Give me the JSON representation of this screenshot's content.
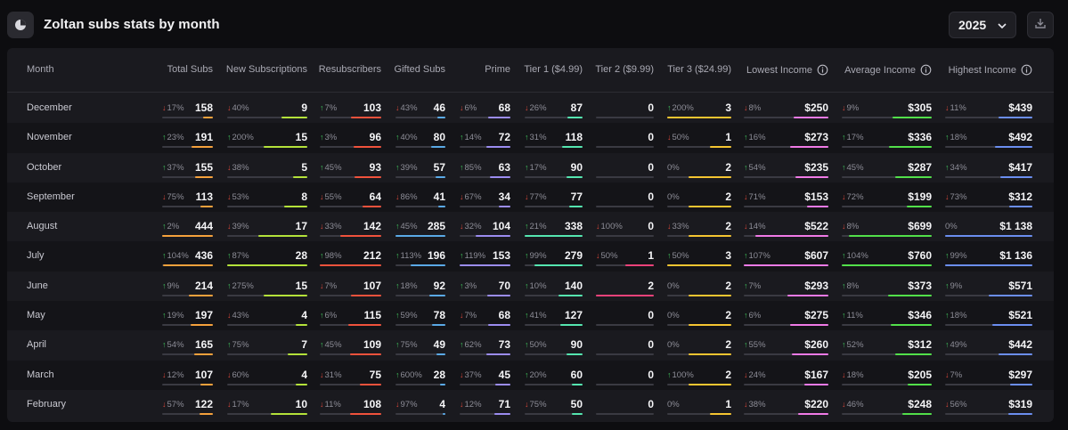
{
  "header": {
    "title": "Zoltan subs stats by month",
    "year": "2025",
    "logo_icon": "pie-chart-icon",
    "download_icon": "download-icon"
  },
  "columns": [
    {
      "key": "month",
      "label": "Month"
    },
    {
      "key": "total",
      "label": "Total Subs",
      "color": "#f5a13c"
    },
    {
      "key": "new",
      "label": "New Subscriptions",
      "color": "#b4e23a"
    },
    {
      "key": "resubs",
      "label": "Resubscribers",
      "color": "#f0523c"
    },
    {
      "key": "gifted",
      "label": "Gifted Subs",
      "color": "#5aa9e6"
    },
    {
      "key": "prime",
      "label": "Prime",
      "color": "#9b8cf0"
    },
    {
      "key": "tier1",
      "label": "Tier 1 ($4.99)",
      "color": "#55e6b0"
    },
    {
      "key": "tier2",
      "label": "Tier 2 ($9.99)",
      "color": "#f0427a"
    },
    {
      "key": "tier3",
      "label": "Tier 3 ($24.99)",
      "color": "#f5c531"
    },
    {
      "key": "lowest",
      "label": "Lowest Income",
      "color": "#f07ae6",
      "info": true
    },
    {
      "key": "average",
      "label": "Average Income",
      "color": "#52e04a",
      "info": true
    },
    {
      "key": "highest",
      "label": "Highest Income",
      "color": "#6b8ef0",
      "info": true
    }
  ],
  "rows": [
    {
      "month": "December",
      "cells": [
        {
          "dir": "down",
          "pct": "17%",
          "val": "158",
          "fill": 0.2
        },
        {
          "dir": "down",
          "pct": "40%",
          "val": "9",
          "fill": 0.32
        },
        {
          "dir": "up",
          "pct": "7%",
          "val": "103",
          "fill": 0.5
        },
        {
          "dir": "down",
          "pct": "43%",
          "val": "46",
          "fill": 0.16
        },
        {
          "dir": "down",
          "pct": "6%",
          "val": "68",
          "fill": 0.44
        },
        {
          "dir": "down",
          "pct": "26%",
          "val": "87",
          "fill": 0.26
        },
        {
          "dir": "",
          "pct": "",
          "val": "0",
          "fill": 0
        },
        {
          "dir": "up",
          "pct": "200%",
          "val": "3",
          "fill": 1
        },
        {
          "dir": "down",
          "pct": "8%",
          "val": "$250",
          "fill": 0.41
        },
        {
          "dir": "down",
          "pct": "9%",
          "val": "$305",
          "fill": 0.44
        },
        {
          "dir": "down",
          "pct": "11%",
          "val": "$439",
          "fill": 0.39
        }
      ]
    },
    {
      "month": "November",
      "cells": [
        {
          "dir": "up",
          "pct": "23%",
          "val": "191",
          "fill": 0.43
        },
        {
          "dir": "up",
          "pct": "200%",
          "val": "15",
          "fill": 0.54
        },
        {
          "dir": "up",
          "pct": "3%",
          "val": "96",
          "fill": 0.45
        },
        {
          "dir": "up",
          "pct": "40%",
          "val": "80",
          "fill": 0.28
        },
        {
          "dir": "up",
          "pct": "14%",
          "val": "72",
          "fill": 0.47
        },
        {
          "dir": "up",
          "pct": "31%",
          "val": "118",
          "fill": 0.35
        },
        {
          "dir": "",
          "pct": "",
          "val": "0",
          "fill": 0
        },
        {
          "dir": "down",
          "pct": "50%",
          "val": "1",
          "fill": 0.33
        },
        {
          "dir": "up",
          "pct": "16%",
          "val": "$273",
          "fill": 0.45
        },
        {
          "dir": "up",
          "pct": "17%",
          "val": "$336",
          "fill": 0.48
        },
        {
          "dir": "up",
          "pct": "18%",
          "val": "$492",
          "fill": 0.43
        }
      ]
    },
    {
      "month": "October",
      "cells": [
        {
          "dir": "up",
          "pct": "37%",
          "val": "155",
          "fill": 0.35
        },
        {
          "dir": "down",
          "pct": "38%",
          "val": "5",
          "fill": 0.18
        },
        {
          "dir": "up",
          "pct": "45%",
          "val": "93",
          "fill": 0.44
        },
        {
          "dir": "up",
          "pct": "39%",
          "val": "57",
          "fill": 0.2
        },
        {
          "dir": "up",
          "pct": "85%",
          "val": "63",
          "fill": 0.41
        },
        {
          "dir": "up",
          "pct": "17%",
          "val": "90",
          "fill": 0.27
        },
        {
          "dir": "",
          "pct": "",
          "val": "0",
          "fill": 0
        },
        {
          "dir": "",
          "pct": "0%",
          "val": "2",
          "fill": 0.67
        },
        {
          "dir": "up",
          "pct": "54%",
          "val": "$235",
          "fill": 0.39
        },
        {
          "dir": "up",
          "pct": "45%",
          "val": "$287",
          "fill": 0.41
        },
        {
          "dir": "up",
          "pct": "34%",
          "val": "$417",
          "fill": 0.37
        }
      ]
    },
    {
      "month": "September",
      "cells": [
        {
          "dir": "down",
          "pct": "75%",
          "val": "113",
          "fill": 0.25
        },
        {
          "dir": "down",
          "pct": "53%",
          "val": "8",
          "fill": 0.29
        },
        {
          "dir": "down",
          "pct": "55%",
          "val": "64",
          "fill": 0.3
        },
        {
          "dir": "down",
          "pct": "86%",
          "val": "41",
          "fill": 0.14
        },
        {
          "dir": "down",
          "pct": "67%",
          "val": "34",
          "fill": 0.22
        },
        {
          "dir": "down",
          "pct": "77%",
          "val": "77",
          "fill": 0.23
        },
        {
          "dir": "",
          "pct": "",
          "val": "0",
          "fill": 0
        },
        {
          "dir": "",
          "pct": "0%",
          "val": "2",
          "fill": 0.67
        },
        {
          "dir": "down",
          "pct": "71%",
          "val": "$153",
          "fill": 0.25
        },
        {
          "dir": "down",
          "pct": "72%",
          "val": "$199",
          "fill": 0.28
        },
        {
          "dir": "down",
          "pct": "73%",
          "val": "$312",
          "fill": 0.27
        }
      ]
    },
    {
      "month": "August",
      "cells": [
        {
          "dir": "up",
          "pct": "2%",
          "val": "444",
          "fill": 1
        },
        {
          "dir": "down",
          "pct": "39%",
          "val": "17",
          "fill": 0.61
        },
        {
          "dir": "down",
          "pct": "33%",
          "val": "142",
          "fill": 0.67
        },
        {
          "dir": "up",
          "pct": "45%",
          "val": "285",
          "fill": 1
        },
        {
          "dir": "down",
          "pct": "32%",
          "val": "104",
          "fill": 0.68
        },
        {
          "dir": "up",
          "pct": "21%",
          "val": "338",
          "fill": 1
        },
        {
          "dir": "down",
          "pct": "100%",
          "val": "0",
          "fill": 0
        },
        {
          "dir": "down",
          "pct": "33%",
          "val": "2",
          "fill": 0.67
        },
        {
          "dir": "down",
          "pct": "14%",
          "val": "$522",
          "fill": 0.86
        },
        {
          "dir": "down",
          "pct": "8%",
          "val": "$699",
          "fill": 0.92
        },
        {
          "dir": "",
          "pct": "0%",
          "val": "$1 138",
          "fill": 1
        }
      ]
    },
    {
      "month": "July",
      "cells": [
        {
          "dir": "up",
          "pct": "104%",
          "val": "436",
          "fill": 0.98
        },
        {
          "dir": "up",
          "pct": "87%",
          "val": "28",
          "fill": 1
        },
        {
          "dir": "up",
          "pct": "98%",
          "val": "212",
          "fill": 1
        },
        {
          "dir": "up",
          "pct": "113%",
          "val": "196",
          "fill": 0.69
        },
        {
          "dir": "up",
          "pct": "119%",
          "val": "153",
          "fill": 1
        },
        {
          "dir": "up",
          "pct": "99%",
          "val": "279",
          "fill": 0.83
        },
        {
          "dir": "down",
          "pct": "50%",
          "val": "1",
          "fill": 0.5
        },
        {
          "dir": "up",
          "pct": "50%",
          "val": "3",
          "fill": 1
        },
        {
          "dir": "up",
          "pct": "107%",
          "val": "$607",
          "fill": 1
        },
        {
          "dir": "up",
          "pct": "104%",
          "val": "$760",
          "fill": 1
        },
        {
          "dir": "up",
          "pct": "99%",
          "val": "$1 136",
          "fill": 1
        }
      ]
    },
    {
      "month": "June",
      "cells": [
        {
          "dir": "up",
          "pct": "9%",
          "val": "214",
          "fill": 0.48
        },
        {
          "dir": "up",
          "pct": "275%",
          "val": "15",
          "fill": 0.54
        },
        {
          "dir": "down",
          "pct": "7%",
          "val": "107",
          "fill": 0.5
        },
        {
          "dir": "up",
          "pct": "18%",
          "val": "92",
          "fill": 0.32
        },
        {
          "dir": "up",
          "pct": "3%",
          "val": "70",
          "fill": 0.46
        },
        {
          "dir": "up",
          "pct": "10%",
          "val": "140",
          "fill": 0.41
        },
        {
          "dir": "",
          "pct": "",
          "val": "2",
          "fill": 1
        },
        {
          "dir": "",
          "pct": "0%",
          "val": "2",
          "fill": 0.67
        },
        {
          "dir": "up",
          "pct": "7%",
          "val": "$293",
          "fill": 0.48
        },
        {
          "dir": "up",
          "pct": "8%",
          "val": "$373",
          "fill": 0.49
        },
        {
          "dir": "up",
          "pct": "9%",
          "val": "$571",
          "fill": 0.5
        }
      ]
    },
    {
      "month": "May",
      "cells": [
        {
          "dir": "up",
          "pct": "19%",
          "val": "197",
          "fill": 0.44
        },
        {
          "dir": "down",
          "pct": "43%",
          "val": "4",
          "fill": 0.14
        },
        {
          "dir": "up",
          "pct": "6%",
          "val": "115",
          "fill": 0.54
        },
        {
          "dir": "up",
          "pct": "59%",
          "val": "78",
          "fill": 0.27
        },
        {
          "dir": "down",
          "pct": "7%",
          "val": "68",
          "fill": 0.44
        },
        {
          "dir": "up",
          "pct": "41%",
          "val": "127",
          "fill": 0.38
        },
        {
          "dir": "",
          "pct": "",
          "val": "0",
          "fill": 0
        },
        {
          "dir": "",
          "pct": "0%",
          "val": "2",
          "fill": 0.67
        },
        {
          "dir": "up",
          "pct": "6%",
          "val": "$275",
          "fill": 0.45
        },
        {
          "dir": "up",
          "pct": "11%",
          "val": "$346",
          "fill": 0.46
        },
        {
          "dir": "up",
          "pct": "18%",
          "val": "$521",
          "fill": 0.46
        }
      ]
    },
    {
      "month": "April",
      "cells": [
        {
          "dir": "up",
          "pct": "54%",
          "val": "165",
          "fill": 0.37
        },
        {
          "dir": "up",
          "pct": "75%",
          "val": "7",
          "fill": 0.25
        },
        {
          "dir": "up",
          "pct": "45%",
          "val": "109",
          "fill": 0.51
        },
        {
          "dir": "up",
          "pct": "75%",
          "val": "49",
          "fill": 0.17
        },
        {
          "dir": "up",
          "pct": "62%",
          "val": "73",
          "fill": 0.48
        },
        {
          "dir": "up",
          "pct": "50%",
          "val": "90",
          "fill": 0.27
        },
        {
          "dir": "",
          "pct": "",
          "val": "0",
          "fill": 0
        },
        {
          "dir": "",
          "pct": "0%",
          "val": "2",
          "fill": 0.67
        },
        {
          "dir": "up",
          "pct": "55%",
          "val": "$260",
          "fill": 0.43
        },
        {
          "dir": "up",
          "pct": "52%",
          "val": "$312",
          "fill": 0.41
        },
        {
          "dir": "up",
          "pct": "49%",
          "val": "$442",
          "fill": 0.39
        }
      ]
    },
    {
      "month": "March",
      "cells": [
        {
          "dir": "down",
          "pct": "12%",
          "val": "107",
          "fill": 0.24
        },
        {
          "dir": "down",
          "pct": "60%",
          "val": "4",
          "fill": 0.14
        },
        {
          "dir": "down",
          "pct": "31%",
          "val": "75",
          "fill": 0.35
        },
        {
          "dir": "up",
          "pct": "600%",
          "val": "28",
          "fill": 0.1
        },
        {
          "dir": "down",
          "pct": "37%",
          "val": "45",
          "fill": 0.29
        },
        {
          "dir": "up",
          "pct": "20%",
          "val": "60",
          "fill": 0.18
        },
        {
          "dir": "",
          "pct": "",
          "val": "0",
          "fill": 0
        },
        {
          "dir": "up",
          "pct": "100%",
          "val": "2",
          "fill": 0.67
        },
        {
          "dir": "down",
          "pct": "24%",
          "val": "$167",
          "fill": 0.28
        },
        {
          "dir": "down",
          "pct": "18%",
          "val": "$205",
          "fill": 0.27
        },
        {
          "dir": "down",
          "pct": "7%",
          "val": "$297",
          "fill": 0.26
        }
      ]
    },
    {
      "month": "February",
      "cells": [
        {
          "dir": "down",
          "pct": "57%",
          "val": "122",
          "fill": 0.27
        },
        {
          "dir": "down",
          "pct": "17%",
          "val": "10",
          "fill": 0.46
        },
        {
          "dir": "down",
          "pct": "11%",
          "val": "108",
          "fill": 0.51
        },
        {
          "dir": "down",
          "pct": "97%",
          "val": "4",
          "fill": 0.05
        },
        {
          "dir": "down",
          "pct": "12%",
          "val": "71",
          "fill": 0.31
        },
        {
          "dir": "down",
          "pct": "75%",
          "val": "50",
          "fill": 0.18
        },
        {
          "dir": "",
          "pct": "",
          "val": "0",
          "fill": 0
        },
        {
          "dir": "",
          "pct": "0%",
          "val": "1",
          "fill": 0.33
        },
        {
          "dir": "down",
          "pct": "38%",
          "val": "$220",
          "fill": 0.36
        },
        {
          "dir": "down",
          "pct": "46%",
          "val": "$248",
          "fill": 0.33
        },
        {
          "dir": "down",
          "pct": "56%",
          "val": "$319",
          "fill": 0.28
        }
      ]
    }
  ]
}
